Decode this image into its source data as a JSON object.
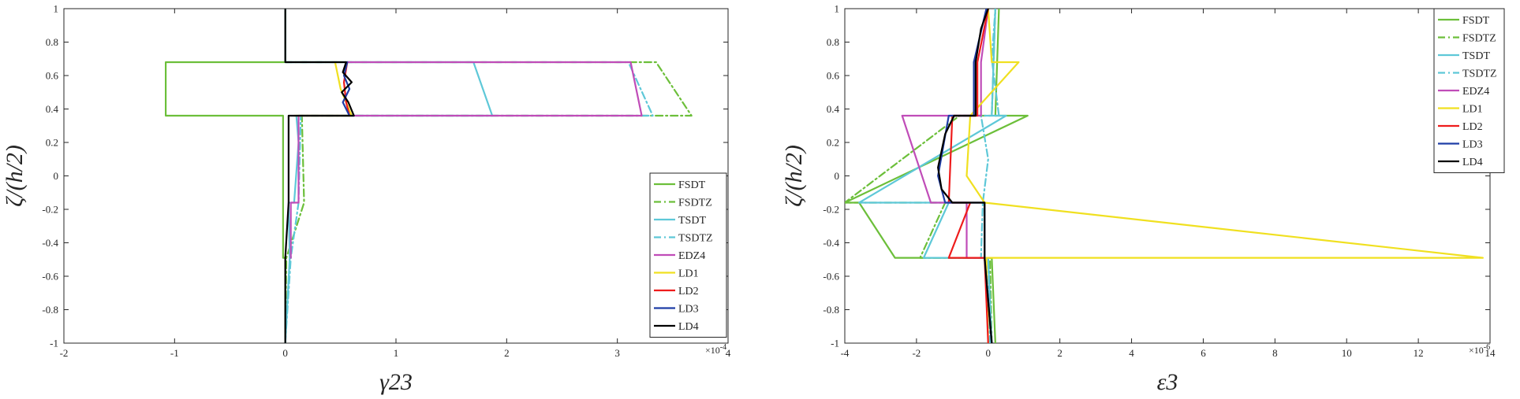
{
  "chart_data": [
    {
      "type": "line",
      "xlabel": "γ23",
      "ylabel": "ζ/(h/2)",
      "x_multiplier_label": "×10",
      "x_multiplier_exponent": "-4",
      "xlim": [
        -2,
        4
      ],
      "ylim": [
        -1,
        1
      ],
      "xticks": [
        "-2",
        "-1",
        "0",
        "1",
        "2",
        "3",
        "4"
      ],
      "yticks": [
        "-1",
        "-0.8",
        "-0.6",
        "-0.4",
        "-0.2",
        "0",
        "0.2",
        "0.4",
        "0.6",
        "0.8",
        "1"
      ],
      "grid": false,
      "legend_position": "bottom-right",
      "series": [
        {
          "name": "FSDT",
          "color": "#6cbf3a",
          "dash": "solid",
          "x": [
            0,
            0,
            -0.02,
            -0.02,
            -0.02,
            -1.08,
            -1.08,
            0,
            0
          ],
          "y": [
            -1,
            -0.49,
            -0.49,
            -0.16,
            0.36,
            0.36,
            0.68,
            0.68,
            1
          ]
        },
        {
          "name": "FSDTZ",
          "color": "#6cbf3a",
          "dash": "dash",
          "x": [
            0,
            0.01,
            0.01,
            0.17,
            0.15,
            3.67,
            3.35,
            0,
            0
          ],
          "y": [
            -1,
            -0.49,
            -0.49,
            -0.16,
            0.36,
            0.36,
            0.68,
            0.68,
            1
          ]
        },
        {
          "name": "TSDT",
          "color": "#5ec8d8",
          "dash": "solid",
          "x": [
            0,
            0.04,
            0.04,
            0.03,
            0.08,
            0.12,
            0.1,
            1.87,
            1.7,
            0,
            0
          ],
          "y": [
            -1,
            -0.49,
            -0.49,
            -0.16,
            -0.16,
            0.2,
            0.36,
            0.36,
            0.68,
            0.68,
            1
          ]
        },
        {
          "name": "TSDTZ",
          "color": "#5ec8d8",
          "dash": "dash",
          "x": [
            0,
            0.05,
            0.05,
            0.12,
            0.14,
            3.32,
            3.1,
            0,
            0
          ],
          "y": [
            -1,
            -0.49,
            -0.49,
            -0.16,
            0.36,
            0.36,
            0.68,
            0.68,
            1
          ]
        },
        {
          "name": "EDZ4",
          "color": "#c04cb8",
          "dash": "solid",
          "x": [
            0.05,
            0.05,
            0.12,
            0.12,
            3.22,
            3.12,
            0.55
          ],
          "y": [
            -0.49,
            -0.16,
            -0.16,
            0.36,
            0.36,
            0.68,
            0.68
          ]
        },
        {
          "name": "LD1",
          "color": "#f0e020",
          "dash": "solid",
          "x": [
            0.08,
            0.6,
            0.5,
            0.45
          ],
          "y": [
            0.36,
            0.36,
            0.52,
            0.68
          ]
        },
        {
          "name": "LD2",
          "color": "#ee1c1c",
          "dash": "solid",
          "x": [
            0.58,
            0.55,
            0.53,
            0.56
          ],
          "y": [
            0.36,
            0.44,
            0.56,
            0.68
          ]
        },
        {
          "name": "LD3",
          "color": "#1f3da6",
          "dash": "solid",
          "x": [
            0.58,
            0.52,
            0.58,
            0.53,
            0.56
          ],
          "y": [
            0.36,
            0.44,
            0.52,
            0.6,
            0.68
          ]
        },
        {
          "name": "LD4",
          "color": "#000000",
          "dash": "solid",
          "x": [
            0,
            0,
            0.03,
            0.03,
            0.62,
            0.57,
            0.51,
            0.6,
            0.52,
            0.55,
            0,
            0
          ],
          "y": [
            -1,
            -0.49,
            -0.16,
            0.36,
            0.36,
            0.44,
            0.5,
            0.56,
            0.62,
            0.68,
            0.68,
            1
          ]
        }
      ]
    },
    {
      "type": "line",
      "xlabel": "ε3",
      "ylabel": "ζ/(h/2)",
      "x_multiplier_label": "×10",
      "x_multiplier_exponent": "-6",
      "xlim": [
        -4,
        14
      ],
      "ylim": [
        -1,
        1
      ],
      "xticks": [
        "-4",
        "-2",
        "0",
        "2",
        "4",
        "6",
        "8",
        "10",
        "12",
        "14"
      ],
      "yticks": [
        "-1",
        "-0.8",
        "-0.6",
        "-0.4",
        "-0.2",
        "0",
        "0.2",
        "0.4",
        "0.6",
        "0.8",
        "1"
      ],
      "grid": false,
      "legend_position": "top-right",
      "series": [
        {
          "name": "FSDT",
          "color": "#6cbf3a",
          "dash": "solid",
          "x": [
            0.2,
            0.1,
            -2.6,
            -3.6,
            -4,
            1.1,
            0.2,
            0.3
          ],
          "y": [
            -1,
            -0.49,
            -0.49,
            -0.16,
            -0.16,
            0.36,
            0.36,
            1
          ]
        },
        {
          "name": "FSDTZ",
          "color": "#6cbf3a",
          "dash": "dash",
          "x": [
            0.1,
            0.05,
            -1.9,
            -1.2,
            -4,
            -0.8,
            0.1,
            0.2
          ],
          "y": [
            -1,
            -0.49,
            -0.49,
            -0.16,
            -0.16,
            0.36,
            0.36,
            1
          ]
        },
        {
          "name": "TSDT",
          "color": "#5ec8d8",
          "dash": "solid",
          "x": [
            0.1,
            0,
            -1.8,
            -1.1,
            -3.6,
            0.5,
            0.1,
            0.2
          ],
          "y": [
            -1,
            -0.49,
            -0.49,
            -0.16,
            -0.16,
            0.36,
            0.36,
            1
          ]
        },
        {
          "name": "TSDTZ",
          "color": "#5ec8d8",
          "dash": "dash",
          "x": [
            0.05,
            0,
            -0.2,
            -0.15,
            0,
            -0.2,
            0.3,
            0.1,
            0.2
          ],
          "y": [
            -1,
            -0.49,
            -0.49,
            -0.16,
            0.1,
            0.36,
            0.36,
            0.7,
            1
          ]
        },
        {
          "name": "EDZ4",
          "color": "#c04cb8",
          "dash": "solid",
          "x": [
            0.1,
            -0.1,
            -0.6,
            -0.6,
            -1.6,
            -2.4,
            -0.2,
            -0.2,
            0
          ],
          "y": [
            -1,
            -0.49,
            -0.49,
            -0.16,
            -0.16,
            0.36,
            0.36,
            0.68,
            1
          ]
        },
        {
          "name": "LD1",
          "color": "#f0e020",
          "dash": "solid",
          "x": [
            0,
            -0.05,
            13.8,
            -0.1,
            -0.6,
            -0.5,
            0.85,
            0.1,
            0
          ],
          "y": [
            -1,
            -0.49,
            -0.49,
            -0.16,
            0,
            0.36,
            0.68,
            0.68,
            1
          ]
        },
        {
          "name": "LD2",
          "color": "#ee1c1c",
          "dash": "solid",
          "x": [
            0,
            -0.1,
            -1.1,
            -0.5,
            -1.1,
            -1,
            -0.3,
            -0.3,
            0
          ],
          "y": [
            -1,
            -0.49,
            -0.49,
            -0.16,
            -0.16,
            0.36,
            0.36,
            0.68,
            1
          ]
        },
        {
          "name": "LD3",
          "color": "#1f3da6",
          "dash": "solid",
          "x": [
            0.1,
            -0.1,
            -0.1,
            -0.4,
            -1.2,
            -1.4,
            -1.1,
            -0.4,
            -0.4,
            -0.05
          ],
          "y": [
            -1,
            -0.49,
            -0.16,
            -0.16,
            -0.16,
            0,
            0.36,
            0.36,
            0.68,
            1
          ]
        },
        {
          "name": "LD4",
          "color": "#000000",
          "dash": "solid",
          "x": [
            0.1,
            -0.1,
            -0.1,
            -1,
            -1.3,
            -1.4,
            -1.2,
            -0.95,
            -0.35,
            -0.35,
            -0.2,
            0
          ],
          "y": [
            -1,
            -0.49,
            -0.16,
            -0.16,
            -0.08,
            0.05,
            0.25,
            0.36,
            0.36,
            0.68,
            0.88,
            1
          ]
        }
      ]
    }
  ]
}
